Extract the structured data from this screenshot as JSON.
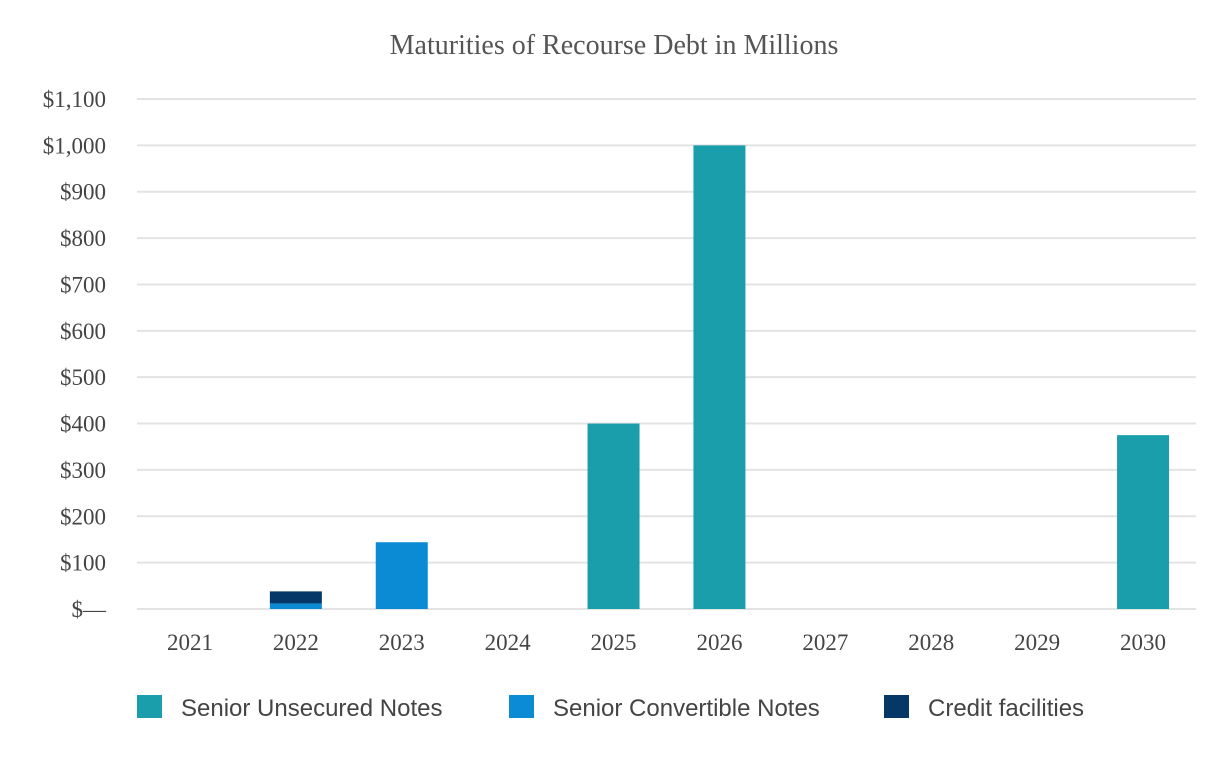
{
  "chart_data": {
    "type": "bar",
    "stacked": true,
    "title": "Maturities of Recourse Debt in Millions",
    "xlabel": "",
    "ylabel": "",
    "categories": [
      "2021",
      "2022",
      "2023",
      "2024",
      "2025",
      "2026",
      "2027",
      "2028",
      "2029",
      "2030"
    ],
    "series": [
      {
        "name": "Senior Unsecured Notes",
        "color": "#1a9eac",
        "values": [
          0,
          0,
          0,
          0,
          400,
          1000,
          0,
          0,
          0,
          375
        ]
      },
      {
        "name": "Senior Convertible Notes",
        "color": "#0a8bd4",
        "values": [
          0,
          12,
          144,
          0,
          0,
          0,
          0,
          0,
          0,
          0
        ]
      },
      {
        "name": "Credit facilities",
        "color": "#053866",
        "values": [
          0,
          26,
          0,
          0,
          0,
          0,
          0,
          0,
          0,
          0
        ]
      }
    ],
    "ylim": [
      0,
      1100
    ],
    "yticks": [
      0,
      100,
      200,
      300,
      400,
      500,
      600,
      700,
      800,
      900,
      1000,
      1100
    ],
    "ytick_labels": [
      "$—",
      "$100",
      "$200",
      "$300",
      "$400",
      "$500",
      "$600",
      "$700",
      "$800",
      "$900",
      "$1,000",
      "$1,100"
    ],
    "grid": true,
    "legend_position": "bottom"
  }
}
